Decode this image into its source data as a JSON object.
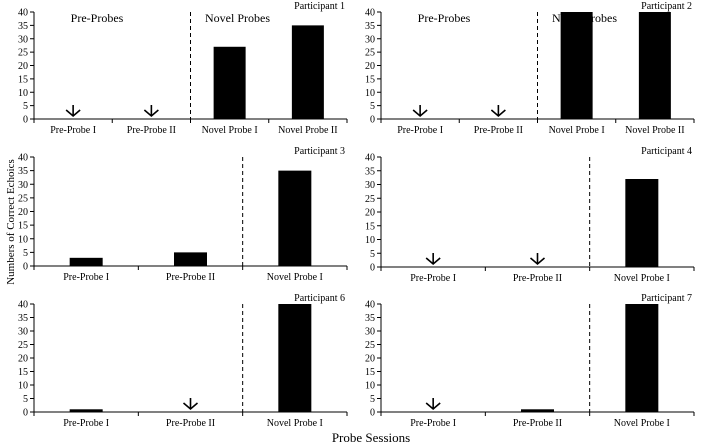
{
  "figure": {
    "ylabel": "Numbers of Correct  Echoics",
    "xlabel": "Probe Sessions",
    "ylim": [
      0,
      40
    ],
    "yticks": [
      0,
      5,
      10,
      15,
      20,
      25,
      30,
      35,
      40
    ]
  },
  "chart_data": [
    {
      "type": "bar",
      "title": "Participant 1",
      "categories": [
        "Pre-Probe I",
        "Pre-Probe II",
        "Novel Probe I",
        "Novel Probe II"
      ],
      "values": [
        0,
        0,
        27,
        35
      ],
      "zero_arrows": [
        0,
        1
      ],
      "phase_line_after": 1,
      "phase_labels": [
        "Pre-Probes",
        "Novel Probes"
      ],
      "ylim": [
        0,
        40
      ]
    },
    {
      "type": "bar",
      "title": "Participant 2",
      "categories": [
        "Pre-Probe I",
        "Pre-Probe II",
        "Novel Probe I",
        "Novel Probe II"
      ],
      "values": [
        0,
        0,
        40,
        40
      ],
      "zero_arrows": [
        0,
        1
      ],
      "phase_line_after": 1,
      "phase_labels": [
        "Pre-Probes",
        "Novel Probes"
      ],
      "ylim": [
        0,
        40
      ]
    },
    {
      "type": "bar",
      "title": "Participant 3",
      "categories": [
        "Pre-Probe I",
        "Pre-Probe II",
        "Novel Probe I"
      ],
      "values": [
        3,
        5,
        35
      ],
      "zero_arrows": [],
      "phase_line_after": 1,
      "phase_labels": [],
      "ylim": [
        0,
        40
      ]
    },
    {
      "type": "bar",
      "title": "Participant 4",
      "categories": [
        "Pre-Probe I",
        "Pre-Probe II",
        "Novel Probe I"
      ],
      "values": [
        0,
        0,
        32
      ],
      "zero_arrows": [
        0,
        1
      ],
      "phase_line_after": 1,
      "phase_labels": [],
      "ylim": [
        0,
        40
      ]
    },
    {
      "type": "bar",
      "title": "Participant 6",
      "categories": [
        "Pre-Probe I",
        "Pre-Probe II",
        "Novel Probe I"
      ],
      "values": [
        1,
        0,
        40
      ],
      "zero_arrows": [
        1
      ],
      "phase_line_after": 1,
      "phase_labels": [],
      "ylim": [
        0,
        40
      ]
    },
    {
      "type": "bar",
      "title": "Participant 7",
      "categories": [
        "Pre-Probe I",
        "Pre-Probe II",
        "Novel Probe I"
      ],
      "values": [
        0,
        1,
        40
      ],
      "zero_arrows": [
        0
      ],
      "phase_line_after": 1,
      "phase_labels": [],
      "ylim": [
        0,
        40
      ]
    }
  ]
}
